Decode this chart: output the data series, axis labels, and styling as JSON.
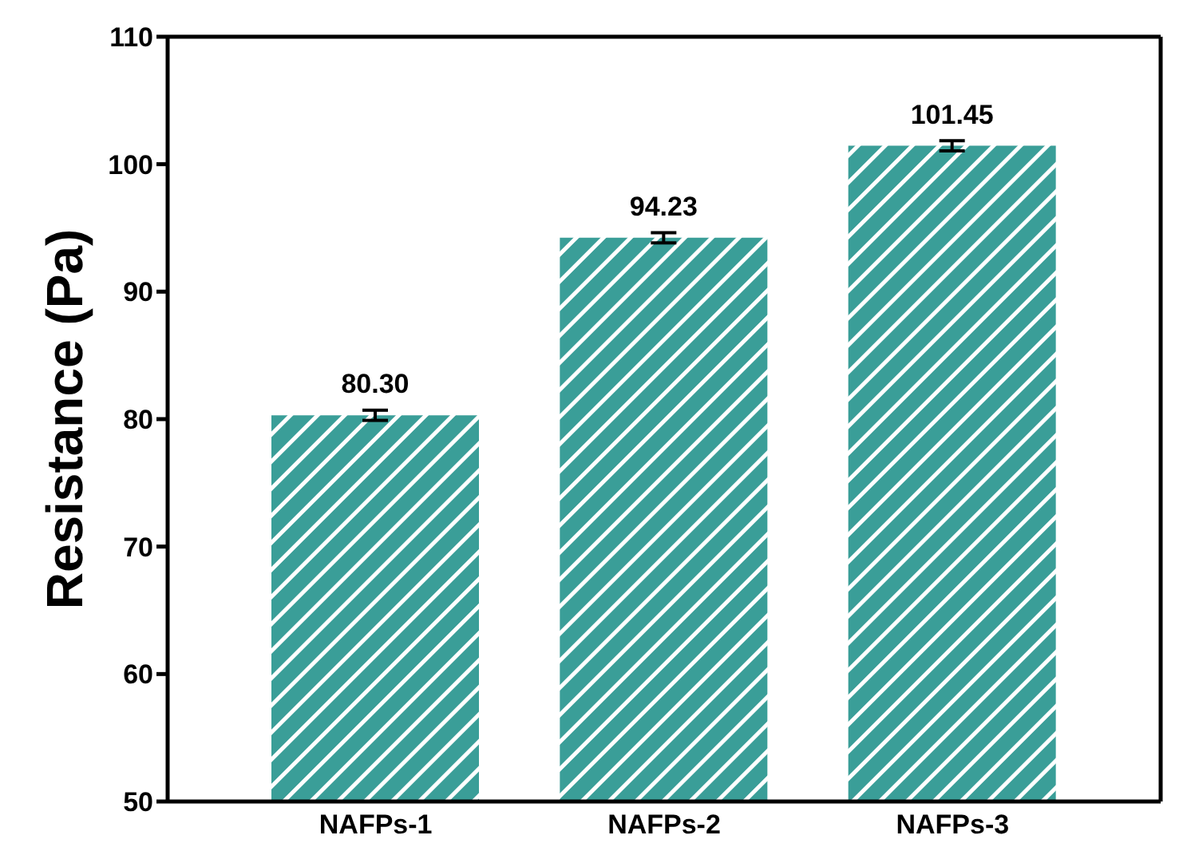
{
  "chart_data": {
    "type": "bar",
    "ylabel": "Resistance (Pa)",
    "categories": [
      "NAFPs-1",
      "NAFPs-2",
      "NAFPs-3"
    ],
    "values": [
      80.3,
      94.23,
      101.45
    ],
    "errors": [
      0.4,
      0.4,
      0.4
    ],
    "color": "#3a9e98",
    "ylim": [
      50,
      110
    ],
    "yticks": [
      50,
      60,
      70,
      80,
      90,
      100,
      110
    ],
    "value_labels": [
      "80.30",
      "94.23",
      "101.45"
    ],
    "grid": false,
    "legend": false
  }
}
